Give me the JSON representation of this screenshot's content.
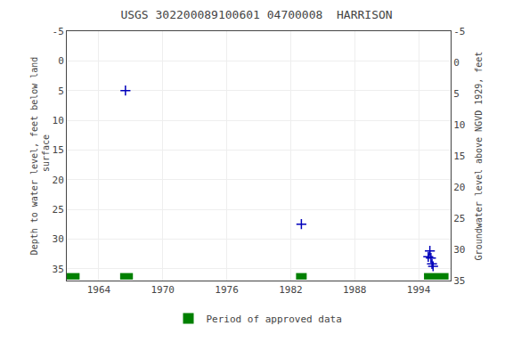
{
  "chart_data": {
    "type": "scatter",
    "title": "USGS 302200089100601 04700008  HARRISON",
    "ylabel": "Depth to water level, feet below land\n surface",
    "y2label": "Groundwater level above NGVD 1929, feet",
    "xlim": [
      1961.0,
      1997.0
    ],
    "xticks": [
      1964,
      1970,
      1976,
      1982,
      1988,
      1994
    ],
    "ylim": [
      37,
      -5
    ],
    "yticks": [
      -5,
      0,
      5,
      10,
      15,
      20,
      25,
      30,
      35
    ],
    "y2lim": [
      35,
      -5
    ],
    "y2ticks": [
      35,
      30,
      25,
      20,
      15,
      10,
      5,
      0,
      -5
    ],
    "grid": true,
    "legend": "bottom",
    "series": [
      {
        "type": "scatter",
        "marker": "plus",
        "color": "#0000bb",
        "x": [
          1966.5,
          1983.0,
          1994.9,
          1995.05,
          1995.15,
          1995.25,
          1995.35
        ],
        "values": [
          5.0,
          27.5,
          33.0,
          32.0,
          33.2,
          34.2,
          34.6
        ]
      },
      {
        "type": "line",
        "line_style": "dashed",
        "color": "#0000bb",
        "x": [
          1994.9,
          1995.05,
          1995.15,
          1995.25,
          1995.35
        ],
        "values": [
          33.0,
          32.0,
          33.2,
          34.2,
          34.6
        ]
      },
      {
        "type": "period_bars",
        "name": "Period of approved data",
        "color": "#008000",
        "x_start": [
          1961.0,
          1966.0,
          1982.5,
          1994.5
        ],
        "x_end": [
          1962.2,
          1967.2,
          1983.5,
          1996.8
        ]
      }
    ]
  }
}
